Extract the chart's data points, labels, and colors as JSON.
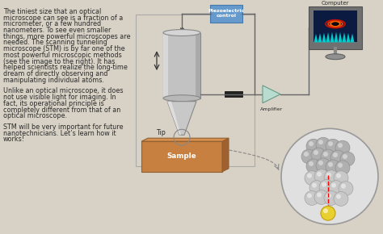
{
  "bg_color": "#d8d2c6",
  "text_color": "#2b2b2b",
  "text_left": [
    "The tiniest size that an optical",
    "microscope can see is a fraction of a",
    "micrometer, or a few hundred",
    "nanometers. To see even smaller",
    "things, more powerful microscopes are",
    "needed. The scanning tunneling",
    "microscope (STM) is by far one of the",
    "most powerful microscopic methods",
    "(see the image to the right). It has",
    "helped scientists realize the long-time",
    "dream of directly observing and",
    "manipulating individual atoms."
  ],
  "text_left2": [
    "Unlike an optical microscope, it does",
    "not use visible light for imaging. In",
    "fact, its operational principle is",
    "completely different from that of an",
    "optical microscope."
  ],
  "text_left3": [
    "STM will be very important for future",
    "nanotechnicians. Let’s learn how it",
    "works!"
  ],
  "label_piezo": "Piezoelectric\ncontrol",
  "label_amplifier": "Amplifier",
  "label_computer": "Computer",
  "label_tip": "Tip",
  "label_sample": "Sample",
  "cylinder_color": "#aaaaaa",
  "sample_color": "#c8874a",
  "box_color": "#6699cc",
  "font_size": 5.8
}
